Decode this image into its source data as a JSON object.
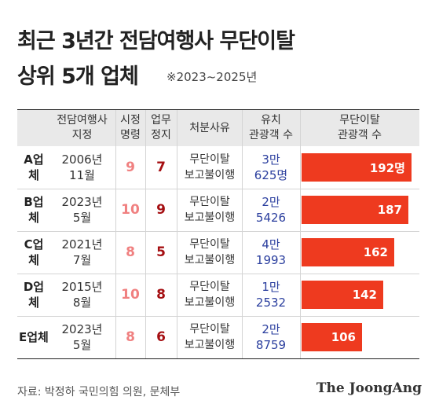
{
  "title": {
    "line1": "최근 3년간 전담여행사 무단이탈",
    "line2": "상위 5개 업체",
    "note": "※2023~2025년"
  },
  "headers": {
    "designation": "전담여행사\n지정",
    "correction": "시정\n명령",
    "suspension": "업무\n정지",
    "reason": "처분사유",
    "tourists": "유치\n관광객 수",
    "absconded": "무단이탈\n관광객 수"
  },
  "rows": [
    {
      "company": "A업체",
      "date": "2006년\n11월",
      "correction": "9",
      "suspension": "7",
      "reason": "무단이탈\n보고불이행",
      "tourists": "3만\n625명",
      "absconded_label": "192명"
    },
    {
      "company": "B업체",
      "date": "2023년\n5월",
      "correction": "10",
      "suspension": "9",
      "reason": "무단이탈\n보고불이행",
      "tourists": "2만\n5426",
      "absconded_label": "187"
    },
    {
      "company": "C업체",
      "date": "2021년\n7월",
      "correction": "8",
      "suspension": "5",
      "reason": "무단이탈\n보고불이행",
      "tourists": "4만\n1993",
      "absconded_label": "162"
    },
    {
      "company": "D업체",
      "date": "2015년\n8월",
      "correction": "10",
      "suspension": "8",
      "reason": "무단이탈\n보고불이행",
      "tourists": "1만\n2532",
      "absconded_label": "142"
    },
    {
      "company": "E업체",
      "date": "2023년\n5월",
      "correction": "8",
      "suspension": "6",
      "reason": "무단이탈\n보고불이행",
      "tourists": "2만\n8759",
      "absconded_label": "106"
    }
  ],
  "chart_data": {
    "type": "bar",
    "categories": [
      "A업체",
      "B업체",
      "C업체",
      "D업체",
      "E업체"
    ],
    "values": [
      192,
      187,
      162,
      142,
      106
    ],
    "title": "최근 3년간 전담여행사 무단이탈 상위 5개 업체",
    "xlabel": "",
    "ylabel": "무단이탈 관광객 수"
  },
  "colors": {
    "bar": "#ee3a1f",
    "header_bg": "#e9e9e9",
    "correction_text": "#f08080",
    "suspension_text": "#a50f12",
    "tourist_text": "#2a3e9e"
  },
  "footer": {
    "source": "자료: 박정하 국민의힘 의원, 문체부",
    "logo": "The JoongAng"
  }
}
